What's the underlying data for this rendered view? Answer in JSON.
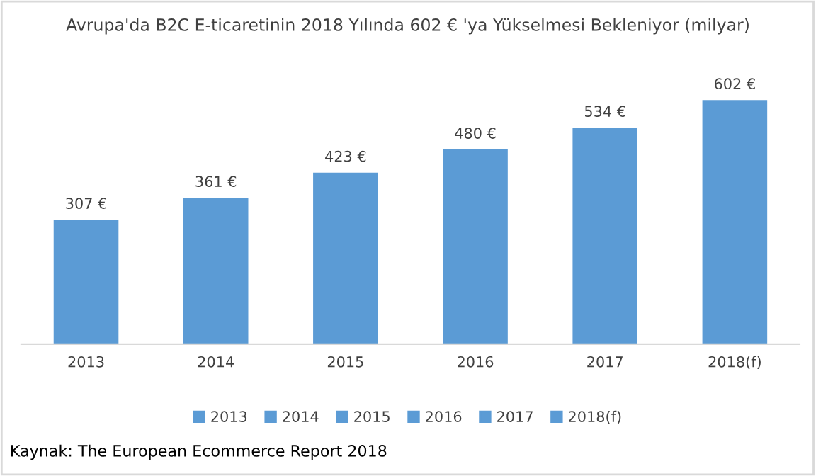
{
  "chart_data": {
    "type": "bar",
    "title": "Avrupa'da B2C E-ticaretinin 2018 Yılında 602 € 'ya Yükselmesi Bekleniyor (milyar)",
    "categories": [
      "2013",
      "2014",
      "2015",
      "2016",
      "2017",
      "2018(f)"
    ],
    "stacked": true,
    "series": [
      {
        "name": "2013",
        "color": "#5b9bd5",
        "values": [
          307,
          null,
          null,
          null,
          null,
          null
        ],
        "value_labels": [
          "307 €",
          null,
          null,
          null,
          null,
          null
        ]
      },
      {
        "name": "2014",
        "color": "#5b9bd5",
        "values": [
          null,
          361,
          null,
          null,
          null,
          null
        ],
        "value_labels": [
          null,
          "361 €",
          null,
          null,
          null,
          null
        ]
      },
      {
        "name": "2015",
        "color": "#5b9bd5",
        "values": [
          null,
          null,
          423,
          null,
          null,
          null
        ],
        "value_labels": [
          null,
          null,
          "423 €",
          null,
          null,
          null
        ]
      },
      {
        "name": "2016",
        "color": "#5b9bd5",
        "values": [
          null,
          null,
          null,
          480,
          null,
          null
        ],
        "value_labels": [
          null,
          null,
          null,
          "480 €",
          null,
          null
        ]
      },
      {
        "name": "2017",
        "color": "#5b9bd5",
        "values": [
          null,
          null,
          null,
          null,
          534,
          null
        ],
        "value_labels": [
          null,
          null,
          null,
          null,
          "534 €",
          null
        ]
      },
      {
        "name": "2018(f)",
        "color": "#5b9bd5",
        "values": [
          null,
          null,
          null,
          null,
          null,
          602
        ],
        "value_labels": [
          null,
          null,
          null,
          null,
          null,
          "602 €"
        ]
      }
    ],
    "legend": "bottom",
    "annotations": [
      "Kaynak: The European Ecommerce Report 2018"
    ]
  }
}
